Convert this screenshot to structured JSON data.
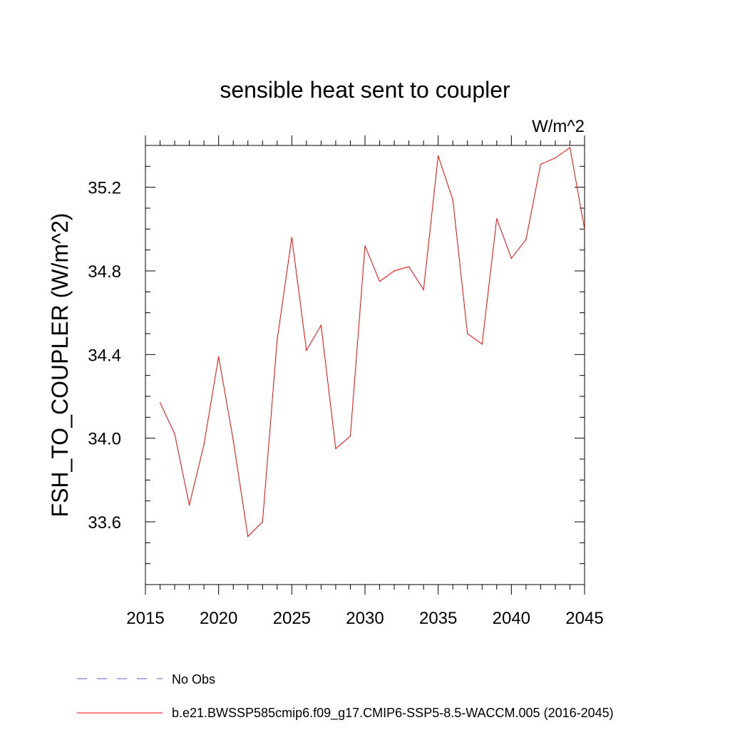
{
  "chart_data": {
    "type": "line",
    "title": "sensible heat sent to coupler",
    "units": "W/m^2",
    "ylabel": "FSH_TO_COUPLER  (W/m^2)",
    "xlabel": "",
    "xlim": [
      2015,
      2045
    ],
    "ylim": [
      33.3,
      35.4
    ],
    "x_ticks": [
      2015,
      2020,
      2025,
      2030,
      2035,
      2040,
      2045
    ],
    "y_ticks": [
      33.6,
      34.0,
      34.4,
      34.8,
      35.2
    ],
    "y_tick_labels": [
      "33.6",
      "34.0",
      "34.4",
      "34.8",
      "35.2"
    ],
    "grid": false,
    "legend_position": "bottom",
    "series": [
      {
        "name": "b.e21.BWSSP585cmip6.f09_g17.CMIP6-SSP5-8.5-WACCM.005 (2016-2045)",
        "color": "#ff0000",
        "style": "solid",
        "x": [
          2016,
          2017,
          2018,
          2019,
          2020,
          2021,
          2022,
          2023,
          2024,
          2025,
          2026,
          2027,
          2028,
          2029,
          2030,
          2031,
          2032,
          2033,
          2034,
          2035,
          2036,
          2037,
          2038,
          2039,
          2040,
          2041,
          2042,
          2043,
          2044,
          2045
        ],
        "values": [
          34.17,
          34.02,
          33.68,
          33.97,
          34.39,
          33.99,
          33.53,
          33.6,
          34.47,
          34.96,
          34.42,
          34.54,
          33.95,
          34.01,
          34.92,
          34.75,
          34.8,
          34.82,
          34.71,
          35.35,
          35.14,
          34.5,
          34.45,
          35.05,
          34.86,
          34.95,
          35.31,
          35.34,
          35.39,
          35.0
        ]
      },
      {
        "name": "No Obs",
        "color": "#6a5acd",
        "style": "dashed",
        "x": [],
        "values": []
      }
    ]
  }
}
